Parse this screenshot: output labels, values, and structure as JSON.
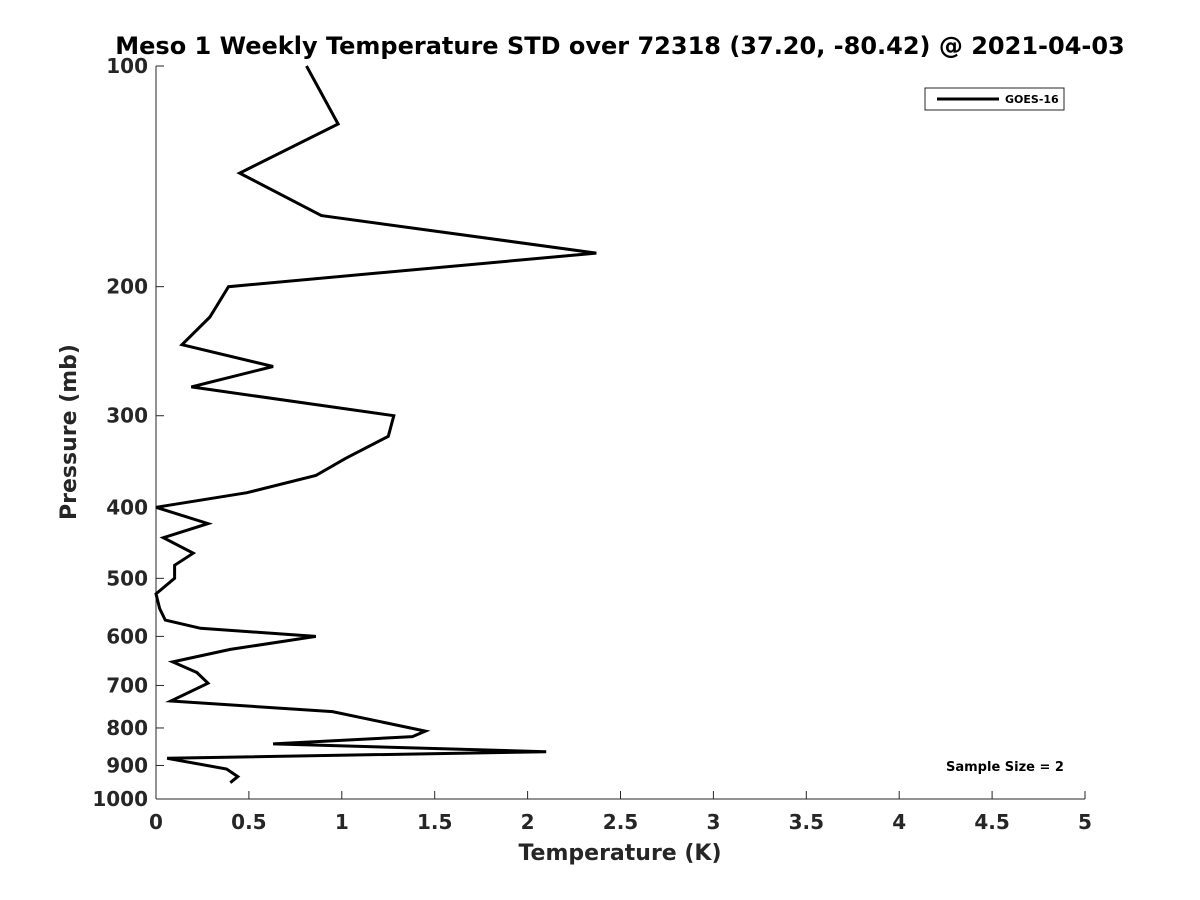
{
  "chart_data": {
    "type": "line",
    "title": "Meso 1 Weekly Temperature STD over 72318 (37.20, -80.42) @ 2021-04-03",
    "xlabel": "Temperature (K)",
    "ylabel": "Pressure (mb)",
    "xlim": [
      0,
      5
    ],
    "ylim": [
      100,
      1000
    ],
    "yscale": "log",
    "yreversed": true,
    "xticks": [
      0,
      0.5,
      1,
      1.5,
      2,
      2.5,
      3,
      3.5,
      4,
      4.5,
      5
    ],
    "xtick_labels": [
      "0",
      "0.5",
      "1",
      "1.5",
      "2",
      "2.5",
      "3",
      "3.5",
      "4",
      "4.5",
      "5"
    ],
    "yticks": [
      100,
      200,
      300,
      400,
      500,
      600,
      700,
      800,
      900,
      1000
    ],
    "ytick_labels": [
      "100",
      "200",
      "300",
      "400",
      "500",
      "600",
      "700",
      "800",
      "900",
      "1000"
    ],
    "grid": false,
    "legend_position": "top-right",
    "series": [
      {
        "name": "GOES-16",
        "color": "#000000",
        "points": [
          [
            0.81,
            100
          ],
          [
            0.98,
            120
          ],
          [
            0.45,
            140
          ],
          [
            0.89,
            160
          ],
          [
            2.37,
            180
          ],
          [
            0.39,
            200
          ],
          [
            0.29,
            220
          ],
          [
            0.14,
            240
          ],
          [
            0.63,
            257
          ],
          [
            0.19,
            274
          ],
          [
            1.28,
            300
          ],
          [
            1.25,
            320
          ],
          [
            1.02,
            343
          ],
          [
            0.86,
            362
          ],
          [
            0.49,
            382
          ],
          [
            0.0,
            400
          ],
          [
            0.28,
            421
          ],
          [
            0.04,
            440
          ],
          [
            0.2,
            462
          ],
          [
            0.1,
            480
          ],
          [
            0.1,
            500
          ],
          [
            0.0,
            525
          ],
          [
            0.02,
            550
          ],
          [
            0.05,
            570
          ],
          [
            0.24,
            585
          ],
          [
            0.86,
            600
          ],
          [
            0.4,
            625
          ],
          [
            0.09,
            650
          ],
          [
            0.22,
            672
          ],
          [
            0.28,
            695
          ],
          [
            0.08,
            735
          ],
          [
            0.95,
            760
          ],
          [
            1.45,
            808
          ],
          [
            1.38,
            822
          ],
          [
            0.63,
            841
          ],
          [
            2.1,
            862
          ],
          [
            0.06,
            880
          ],
          [
            0.38,
            910
          ],
          [
            0.44,
            932
          ],
          [
            0.4,
            950
          ]
        ]
      }
    ],
    "annotations": [
      "Sample Size = 2"
    ]
  }
}
